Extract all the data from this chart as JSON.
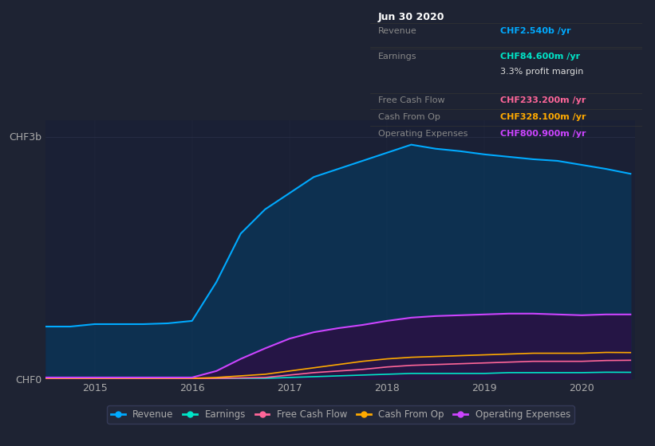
{
  "background_color": "#1e2333",
  "plot_bg_color": "#1a2035",
  "years": [
    2014.5,
    2014.75,
    2015.0,
    2015.25,
    2015.5,
    2015.75,
    2016.0,
    2016.25,
    2016.5,
    2016.75,
    2017.0,
    2017.25,
    2017.5,
    2017.75,
    2018.0,
    2018.25,
    2018.5,
    2018.75,
    2019.0,
    2019.25,
    2019.5,
    2019.75,
    2020.0,
    2020.25,
    2020.5
  ],
  "revenue": [
    0.65,
    0.65,
    0.68,
    0.68,
    0.68,
    0.69,
    0.72,
    1.2,
    1.8,
    2.1,
    2.3,
    2.5,
    2.6,
    2.7,
    2.8,
    2.9,
    2.85,
    2.82,
    2.78,
    2.75,
    2.72,
    2.7,
    2.65,
    2.6,
    2.54
  ],
  "earnings": [
    0.01,
    0.01,
    0.01,
    0.01,
    0.01,
    0.01,
    0.01,
    0.01,
    0.01,
    0.01,
    0.02,
    0.03,
    0.04,
    0.05,
    0.06,
    0.07,
    0.07,
    0.07,
    0.07,
    0.08,
    0.08,
    0.08,
    0.08,
    0.085,
    0.084
  ],
  "free_cash_flow": [
    0.005,
    0.005,
    0.005,
    0.005,
    0.005,
    0.005,
    0.005,
    0.01,
    0.015,
    0.02,
    0.05,
    0.08,
    0.1,
    0.12,
    0.15,
    0.17,
    0.18,
    0.19,
    0.2,
    0.21,
    0.22,
    0.22,
    0.22,
    0.23,
    0.233
  ],
  "cash_from_op": [
    0.01,
    0.01,
    0.01,
    0.01,
    0.01,
    0.01,
    0.01,
    0.02,
    0.04,
    0.06,
    0.1,
    0.14,
    0.18,
    0.22,
    0.25,
    0.27,
    0.28,
    0.29,
    0.3,
    0.31,
    0.32,
    0.32,
    0.32,
    0.33,
    0.328
  ],
  "op_expenses": [
    0.02,
    0.02,
    0.02,
    0.02,
    0.02,
    0.02,
    0.02,
    0.1,
    0.25,
    0.38,
    0.5,
    0.58,
    0.63,
    0.67,
    0.72,
    0.76,
    0.78,
    0.79,
    0.8,
    0.81,
    0.81,
    0.8,
    0.79,
    0.8,
    0.8
  ],
  "revenue_color": "#00aaff",
  "earnings_color": "#00e5c8",
  "free_cash_flow_color": "#ff6699",
  "cash_from_op_color": "#ffaa00",
  "op_expenses_color": "#cc44ff",
  "ylim": [
    0,
    3.2
  ],
  "ytick_labels": [
    "CHF0",
    "CHF3b"
  ],
  "xticks": [
    2015,
    2016,
    2017,
    2018,
    2019,
    2020
  ],
  "grid_color": "#3a4060",
  "text_color": "#aaaaaa",
  "info_box": {
    "date": "Jun 30 2020",
    "rows": [
      {
        "label": "Revenue",
        "value": "CHF2.540b /yr",
        "value_color": "#00aaff"
      },
      {
        "label": "Earnings",
        "value": "CHF84.600m /yr",
        "value_color": "#00e5c8"
      },
      {
        "label": "",
        "value": "3.3% profit margin",
        "value_color": "#dddddd"
      },
      {
        "label": "Free Cash Flow",
        "value": "CHF233.200m /yr",
        "value_color": "#ff6699"
      },
      {
        "label": "Cash From Op",
        "value": "CHF328.100m /yr",
        "value_color": "#ffaa00"
      },
      {
        "label": "Operating Expenses",
        "value": "CHF800.900m /yr",
        "value_color": "#cc44ff"
      }
    ]
  },
  "legend_items": [
    {
      "label": "Revenue",
      "color": "#00aaff"
    },
    {
      "label": "Earnings",
      "color": "#00e5c8"
    },
    {
      "label": "Free Cash Flow",
      "color": "#ff6699"
    },
    {
      "label": "Cash From Op",
      "color": "#ffaa00"
    },
    {
      "label": "Operating Expenses",
      "color": "#cc44ff"
    }
  ]
}
